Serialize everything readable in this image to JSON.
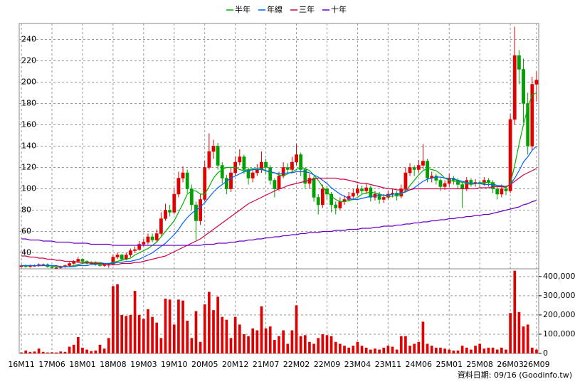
{
  "chart_data": {
    "type": "candlestick",
    "categories": [
      "16M11",
      null,
      null,
      null,
      null,
      null,
      null,
      "17M06",
      null,
      null,
      null,
      null,
      null,
      null,
      "18M01",
      null,
      null,
      null,
      null,
      null,
      null,
      "18M08",
      null,
      null,
      null,
      null,
      null,
      null,
      "19M03",
      null,
      null,
      null,
      null,
      null,
      null,
      "19M10",
      null,
      null,
      null,
      null,
      null,
      null,
      "20M05",
      null,
      null,
      null,
      null,
      null,
      null,
      "20M12",
      null,
      null,
      null,
      null,
      null,
      null,
      "21M07",
      null,
      null,
      null,
      null,
      null,
      null,
      "22M02",
      null,
      null,
      null,
      null,
      null,
      null,
      "22M09",
      null,
      null,
      null,
      null,
      null,
      null,
      "23M04",
      null,
      null,
      null,
      null,
      null,
      null,
      "23M11",
      null,
      null,
      null,
      null,
      null,
      null,
      "24M06",
      null,
      null,
      null,
      null,
      null,
      null,
      "25M01",
      null,
      null,
      null,
      null,
      null,
      null,
      "25M08",
      null,
      null,
      null,
      null,
      null,
      null,
      "26M03",
      null,
      null,
      null,
      null,
      null,
      "26M09"
    ],
    "open": [
      27,
      28,
      27,
      28,
      28,
      29,
      29,
      27,
      26,
      26,
      27,
      28,
      30,
      32,
      34,
      32,
      30,
      31,
      29,
      28,
      29,
      29,
      36,
      38,
      34,
      38,
      42,
      43,
      48,
      50,
      55,
      52,
      58,
      72,
      80,
      78,
      95,
      110,
      115,
      100,
      85,
      70,
      90,
      120,
      135,
      140,
      122,
      110,
      100,
      115,
      125,
      130,
      118,
      110,
      115,
      118,
      125,
      120,
      108,
      100,
      112,
      120,
      118,
      125,
      132,
      118,
      105,
      110,
      92,
      85,
      100,
      95,
      85,
      82,
      88,
      90,
      93,
      96,
      100,
      98,
      101,
      92,
      95,
      90,
      92,
      95,
      96,
      93,
      100,
      115,
      120,
      118,
      122,
      126,
      110,
      112,
      108,
      102,
      105,
      110,
      108,
      104,
      100,
      108,
      105,
      106,
      105,
      108,
      106,
      100,
      95,
      100,
      98,
      165,
      225,
      212,
      180,
      140,
      198
    ],
    "high": [
      29,
      29,
      29,
      29,
      30,
      30,
      30,
      28,
      27,
      28,
      29,
      31,
      33,
      36,
      35,
      33,
      32,
      32,
      30,
      30,
      30,
      38,
      40,
      39,
      40,
      44,
      46,
      51,
      53,
      58,
      58,
      62,
      78,
      86,
      85,
      100,
      116,
      121,
      118,
      104,
      88,
      95,
      126,
      152,
      146,
      143,
      125,
      113,
      120,
      130,
      137,
      132,
      120,
      118,
      123,
      135,
      128,
      122,
      110,
      116,
      125,
      124,
      130,
      142,
      134,
      120,
      114,
      112,
      95,
      104,
      103,
      97,
      88,
      92,
      94,
      97,
      100,
      104,
      103,
      105,
      103,
      98,
      97,
      95,
      98,
      100,
      98,
      104,
      120,
      124,
      122,
      127,
      142,
      128,
      116,
      114,
      110,
      108,
      114,
      112,
      110,
      106,
      111,
      110,
      109,
      108,
      111,
      110,
      108,
      102,
      104,
      103,
      170,
      252,
      230,
      222,
      190,
      205,
      210
    ],
    "low": [
      26,
      26,
      26,
      27,
      27,
      28,
      26,
      25,
      25,
      25,
      26,
      27,
      29,
      31,
      31,
      29,
      29,
      28,
      27,
      27,
      26,
      28,
      34,
      32,
      33,
      36,
      40,
      42,
      46,
      48,
      50,
      50,
      56,
      70,
      74,
      76,
      92,
      106,
      96,
      80,
      52,
      66,
      88,
      118,
      128,
      118,
      105,
      95,
      97,
      112,
      122,
      114,
      104,
      106,
      112,
      115,
      114,
      104,
      92,
      98,
      110,
      114,
      115,
      122,
      112,
      100,
      100,
      88,
      76,
      82,
      90,
      78,
      76,
      80,
      85,
      88,
      90,
      94,
      95,
      95,
      88,
      89,
      86,
      87,
      90,
      92,
      89,
      91,
      98,
      112,
      112,
      115,
      118,
      106,
      106,
      104,
      98,
      99,
      102,
      104,
      100,
      82,
      98,
      102,
      102,
      101,
      103,
      102,
      96,
      90,
      92,
      94,
      96,
      160,
      198,
      162,
      132,
      136,
      182
    ],
    "close": [
      28,
      27,
      28,
      28,
      29,
      29,
      27,
      26,
      26,
      27,
      28,
      30,
      32,
      34,
      32,
      30,
      31,
      29,
      28,
      29,
      29,
      36,
      38,
      34,
      38,
      42,
      43,
      48,
      50,
      55,
      52,
      58,
      72,
      80,
      78,
      95,
      110,
      115,
      100,
      85,
      70,
      90,
      120,
      135,
      140,
      122,
      110,
      100,
      115,
      125,
      130,
      118,
      110,
      115,
      118,
      125,
      120,
      108,
      100,
      112,
      120,
      118,
      125,
      132,
      118,
      105,
      110,
      92,
      85,
      100,
      95,
      85,
      82,
      88,
      90,
      93,
      96,
      100,
      98,
      101,
      92,
      95,
      90,
      92,
      95,
      96,
      93,
      100,
      115,
      120,
      118,
      122,
      126,
      110,
      112,
      108,
      102,
      105,
      110,
      108,
      104,
      100,
      108,
      105,
      106,
      105,
      108,
      106,
      100,
      95,
      100,
      98,
      165,
      225,
      212,
      180,
      140,
      198,
      202
    ],
    "up_color": "#e00000",
    "down_color": "#00a000",
    "series": [
      {
        "name": "半年",
        "color": "#00b000",
        "values": [
          28,
          28,
          28,
          28,
          28,
          28,
          28,
          28,
          27,
          27,
          27,
          27,
          28,
          29,
          30,
          31,
          31,
          31,
          31,
          30,
          30,
          31,
          32,
          33,
          34,
          35,
          38,
          40,
          42,
          44,
          47,
          50,
          55,
          60,
          65,
          70,
          78,
          86,
          95,
          98,
          98,
          95,
          95,
          102,
          110,
          115,
          118,
          120,
          120,
          120,
          118,
          117,
          118,
          119,
          119,
          119,
          117,
          115,
          115,
          113,
          112,
          114,
          116,
          118,
          120,
          119,
          117,
          113,
          108,
          102,
          97,
          93,
          90,
          88,
          88,
          89,
          90,
          92,
          95,
          96,
          97,
          96,
          95,
          94,
          93,
          93,
          94,
          95,
          98,
          103,
          108,
          113,
          117,
          119,
          118,
          117,
          114,
          110,
          108,
          107,
          107,
          106,
          105,
          104,
          105,
          105,
          106,
          106,
          105,
          103,
          102,
          101,
          105,
          122,
          142,
          160,
          176,
          188,
          190
        ]
      },
      {
        "name": "年線",
        "color": "#0060ff",
        "values": [
          28,
          28,
          28,
          28,
          28,
          28,
          28,
          28,
          28,
          27,
          27,
          27,
          27,
          28,
          28,
          28,
          29,
          29,
          30,
          30,
          30,
          30,
          31,
          31,
          32,
          32,
          33,
          34,
          36,
          38,
          40,
          43,
          46,
          49,
          53,
          57,
          62,
          68,
          73,
          77,
          80,
          83,
          87,
          92,
          97,
          101,
          104,
          107,
          110,
          112,
          114,
          116,
          117,
          118,
          118,
          118,
          117,
          116,
          115,
          114,
          114,
          115,
          115,
          116,
          116,
          116,
          115,
          113,
          111,
          108,
          105,
          101,
          98,
          95,
          93,
          91,
          90,
          90,
          91,
          92,
          93,
          93,
          94,
          94,
          94,
          95,
          95,
          96,
          97,
          99,
          101,
          104,
          107,
          109,
          110,
          111,
          111,
          110,
          110,
          109,
          108,
          107,
          106,
          105,
          105,
          105,
          104,
          104,
          104,
          103,
          103,
          102,
          104,
          110,
          117,
          125,
          130,
          136,
          140
        ]
      },
      {
        "name": "三年",
        "color": "#d0004a",
        "values": [
          37,
          37,
          36,
          36,
          35,
          35,
          34,
          34,
          33,
          33,
          32,
          32,
          32,
          31,
          31,
          31,
          30,
          30,
          30,
          29,
          29,
          29,
          29,
          30,
          30,
          30,
          31,
          31,
          32,
          33,
          34,
          35,
          36,
          37,
          39,
          41,
          43,
          45,
          47,
          49,
          51,
          53,
          56,
          59,
          62,
          65,
          68,
          71,
          74,
          77,
          80,
          83,
          86,
          88,
          90,
          92,
          94,
          96,
          98,
          100,
          101,
          103,
          104,
          105,
          106,
          107,
          108,
          109,
          110,
          110,
          110,
          110,
          110,
          109,
          109,
          108,
          107,
          106,
          105,
          105,
          104,
          103,
          102,
          101,
          100,
          100,
          99,
          99,
          99,
          99,
          100,
          100,
          100,
          100,
          100,
          100,
          100,
          100,
          100,
          100,
          100,
          100,
          100,
          100,
          100,
          101,
          101,
          101,
          102,
          102,
          102,
          102,
          104,
          107,
          110,
          113,
          115,
          117,
          119
        ]
      },
      {
        "name": "十年",
        "color": "#6a00c8",
        "values": [
          53,
          53,
          52,
          52,
          52,
          51,
          51,
          51,
          50,
          50,
          50,
          50,
          49,
          49,
          49,
          49,
          48,
          48,
          48,
          48,
          48,
          47,
          47,
          47,
          47,
          47,
          47,
          47,
          47,
          47,
          47,
          47,
          47,
          47,
          47,
          47,
          47,
          47,
          47,
          47,
          47,
          47,
          48,
          48,
          48,
          49,
          49,
          49,
          50,
          50,
          51,
          51,
          52,
          52,
          53,
          53,
          54,
          54,
          55,
          55,
          56,
          56,
          57,
          57,
          58,
          58,
          59,
          59,
          59,
          60,
          60,
          60,
          61,
          61,
          61,
          62,
          62,
          62,
          63,
          63,
          63,
          64,
          64,
          65,
          65,
          65,
          66,
          66,
          67,
          67,
          68,
          68,
          69,
          69,
          70,
          70,
          71,
          71,
          72,
          72,
          73,
          73,
          74,
          74,
          75,
          75,
          76,
          76,
          77,
          78,
          79,
          80,
          81,
          82,
          83,
          85,
          86,
          88,
          89
        ]
      }
    ],
    "ylim": [
      25,
      255
    ],
    "yticks": [
      40,
      60,
      80,
      100,
      120,
      140,
      160,
      180,
      200,
      220,
      240
    ],
    "grid": true,
    "volume": {
      "color": "#e00000",
      "values": [
        5000,
        15000,
        8000,
        10000,
        25000,
        8000,
        5000,
        6000,
        5000,
        10000,
        8000,
        35000,
        45000,
        85000,
        30000,
        20000,
        12000,
        15000,
        45000,
        25000,
        80000,
        350000,
        360000,
        200000,
        195000,
        200000,
        325000,
        200000,
        180000,
        230000,
        190000,
        160000,
        80000,
        285000,
        280000,
        150000,
        280000,
        275000,
        170000,
        80000,
        220000,
        60000,
        255000,
        320000,
        225000,
        295000,
        190000,
        175000,
        80000,
        190000,
        150000,
        100000,
        90000,
        130000,
        120000,
        245000,
        130000,
        140000,
        70000,
        90000,
        120000,
        50000,
        120000,
        250000,
        90000,
        95000,
        60000,
        50000,
        80000,
        100000,
        95000,
        90000,
        60000,
        50000,
        40000,
        30000,
        40000,
        60000,
        40000,
        30000,
        20000,
        25000,
        20000,
        30000,
        40000,
        35000,
        20000,
        90000,
        90000,
        40000,
        50000,
        60000,
        165000,
        50000,
        40000,
        30000,
        30000,
        25000,
        20000,
        15000,
        15000,
        40000,
        30000,
        20000,
        40000,
        50000,
        25000,
        30000,
        30000,
        20000,
        30000,
        20000,
        210000,
        430000,
        215000,
        140000,
        150000,
        30000,
        20000
      ],
      "ylim": [
        0,
        440000
      ],
      "yticks": [
        0,
        {
          "value": 100000,
          "label": "100,000"
        },
        {
          "value": 200000,
          "label": "200,000"
        },
        {
          "value": 300000,
          "label": "300,000"
        },
        {
          "value": 400000,
          "label": "400,000"
        }
      ]
    },
    "note": "資料日期: 09/16  (Goodinfo.tw)"
  }
}
